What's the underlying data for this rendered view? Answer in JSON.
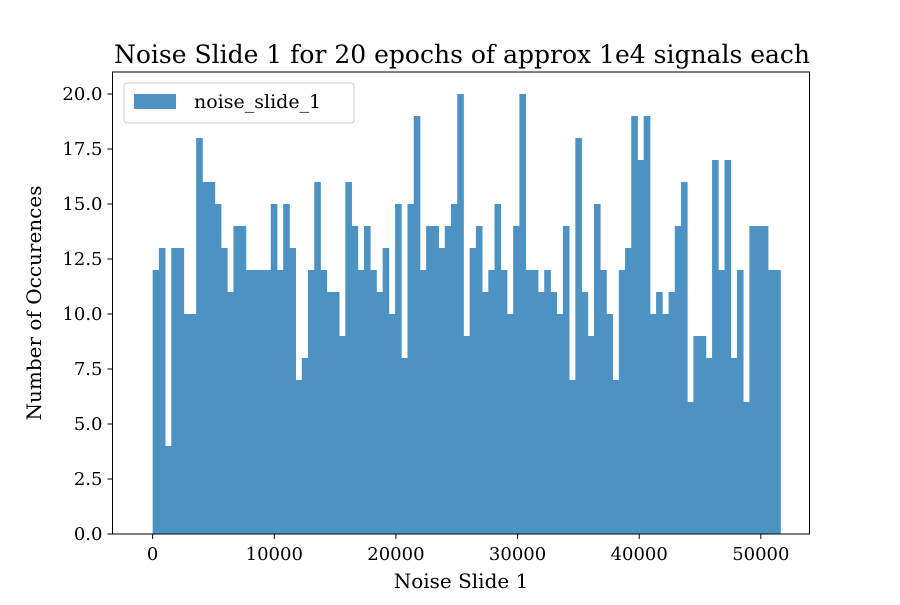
{
  "chart_data": {
    "type": "bar",
    "title": "Noise Slide 1 for 20 epochs of approx 1e4 signals each",
    "xlabel": "Noise Slide 1",
    "ylabel": "Number of Occurences",
    "xlim": [
      -3300,
      54000
    ],
    "ylim": [
      0,
      21
    ],
    "x_ticks": [
      0,
      10000,
      20000,
      30000,
      40000,
      50000
    ],
    "x_tick_labels": [
      "0",
      "10000",
      "20000",
      "30000",
      "40000",
      "50000"
    ],
    "y_ticks": [
      0,
      2.5,
      5,
      7.5,
      10,
      12.5,
      15,
      17.5,
      20
    ],
    "y_tick_labels": [
      "0.0",
      "2.5",
      "5.0",
      "7.5",
      "10.0",
      "12.5",
      "15.0",
      "17.5",
      "20.0"
    ],
    "bin_start": 0,
    "bin_width": 511,
    "bar_color": "#4c93c3",
    "legend_position": "top-left",
    "grid": false,
    "series": [
      {
        "name": "noise_slide_1",
        "values": [
          12,
          13,
          4,
          13,
          13,
          10,
          10,
          18,
          16,
          16,
          15,
          13,
          11,
          14,
          14,
          12,
          12,
          12,
          12,
          15,
          12,
          15,
          13,
          7,
          8,
          12,
          16,
          12,
          11,
          11,
          9,
          16,
          14,
          12,
          14,
          12,
          11,
          13,
          10,
          15,
          8,
          15,
          19,
          12,
          14,
          14,
          13,
          14,
          15,
          20,
          9,
          13,
          14,
          11,
          12,
          15,
          12,
          10,
          14,
          20,
          12,
          12,
          11,
          12,
          11,
          10,
          14,
          7,
          18,
          11,
          9,
          15,
          12,
          10,
          7,
          12,
          13,
          19,
          17,
          19,
          10,
          11,
          10,
          11,
          14,
          16,
          6,
          9,
          9,
          8,
          17,
          12,
          17,
          8,
          12,
          6,
          14,
          14,
          14,
          12,
          12
        ]
      }
    ]
  }
}
